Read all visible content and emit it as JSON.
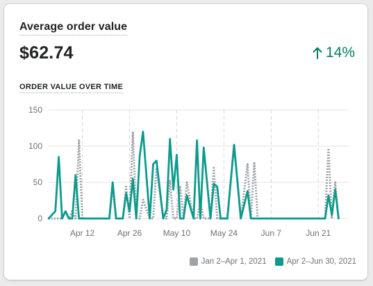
{
  "card": {
    "title": "Average order value",
    "value": "$62.74",
    "change": "14%",
    "change_direction": "up",
    "subtitle": "ORDER VALUE OVER TIME"
  },
  "colors": {
    "current": "#0c9a8d",
    "previous": "#9ea3a8",
    "positive": "#008060"
  },
  "chart_data": {
    "type": "line",
    "ylim": [
      0,
      150
    ],
    "yticks": [
      0,
      50,
      100,
      150
    ],
    "xlim": [
      "2021-04-02",
      "2021-06-30"
    ],
    "xticks": [
      {
        "label": "Apr 12",
        "date": "2021-04-12"
      },
      {
        "label": "Apr 26",
        "date": "2021-04-26"
      },
      {
        "label": "May 10",
        "date": "2021-05-10"
      },
      {
        "label": "May 24",
        "date": "2021-05-24"
      },
      {
        "label": "Jun 7",
        "date": "2021-06-07"
      },
      {
        "label": "Jun 21",
        "date": "2021-06-21"
      }
    ],
    "series": [
      {
        "name": "Jan 2–Apr 1, 2021",
        "style": "dotted",
        "color": "#9ea3a8",
        "x": [
          "2021-04-02",
          "2021-04-04",
          "2021-04-05",
          "2021-04-06",
          "2021-04-07",
          "2021-04-08",
          "2021-04-09",
          "2021-04-10",
          "2021-04-11",
          "2021-04-12",
          "2021-04-20",
          "2021-04-21",
          "2021-04-22",
          "2021-04-24",
          "2021-04-25",
          "2021-04-26",
          "2021-04-27",
          "2021-04-28",
          "2021-04-29",
          "2021-04-30",
          "2021-05-02",
          "2021-05-03",
          "2021-05-04",
          "2021-05-06",
          "2021-05-07",
          "2021-05-08",
          "2021-05-09",
          "2021-05-10",
          "2021-05-11",
          "2021-05-12",
          "2021-05-13",
          "2021-05-15",
          "2021-05-16",
          "2021-05-17",
          "2021-05-18",
          "2021-05-20",
          "2021-05-21",
          "2021-05-22",
          "2021-05-23",
          "2021-05-25",
          "2021-05-27",
          "2021-05-29",
          "2021-05-31",
          "2021-06-01",
          "2021-06-02",
          "2021-06-03",
          "2021-06-04",
          "2021-06-05",
          "2021-06-23",
          "2021-06-24",
          "2021-06-25",
          "2021-06-26",
          "2021-06-27"
        ],
        "y": [
          0,
          0,
          0,
          0,
          10,
          0,
          10,
          0,
          108,
          0,
          0,
          44,
          0,
          0,
          44,
          0,
          120,
          0,
          0,
          26,
          0,
          0,
          70,
          0,
          0,
          52,
          0,
          0,
          45,
          0,
          50,
          0,
          0,
          22,
          0,
          0,
          70,
          0,
          0,
          0,
          102,
          0,
          75,
          0,
          78,
          0,
          0,
          0,
          0,
          97,
          0,
          50,
          0
        ]
      },
      {
        "name": "Apr 2–Jun 30, 2021",
        "style": "solid",
        "color": "#0c9a8d",
        "x": [
          "2021-04-02",
          "2021-04-04",
          "2021-04-05",
          "2021-04-06",
          "2021-04-07",
          "2021-04-08",
          "2021-04-09",
          "2021-04-10",
          "2021-04-11",
          "2021-04-12",
          "2021-04-20",
          "2021-04-21",
          "2021-04-22",
          "2021-04-24",
          "2021-04-25",
          "2021-04-26",
          "2021-04-27",
          "2021-04-28",
          "2021-04-29",
          "2021-04-30",
          "2021-05-02",
          "2021-05-03",
          "2021-05-04",
          "2021-05-06",
          "2021-05-07",
          "2021-05-08",
          "2021-05-09",
          "2021-05-10",
          "2021-05-11",
          "2021-05-12",
          "2021-05-13",
          "2021-05-15",
          "2021-05-16",
          "2021-05-17",
          "2021-05-18",
          "2021-05-20",
          "2021-05-21",
          "2021-05-22",
          "2021-05-23",
          "2021-05-25",
          "2021-05-27",
          "2021-05-29",
          "2021-05-31",
          "2021-06-01",
          "2021-06-02",
          "2021-06-03",
          "2021-06-04",
          "2021-06-05",
          "2021-06-23",
          "2021-06-24",
          "2021-06-25",
          "2021-06-26",
          "2021-06-27"
        ],
        "y": [
          0,
          10,
          85,
          0,
          10,
          0,
          0,
          60,
          0,
          0,
          0,
          50,
          0,
          0,
          35,
          10,
          55,
          0,
          86,
          120,
          0,
          75,
          80,
          0,
          12,
          110,
          40,
          88,
          0,
          0,
          32,
          0,
          108,
          0,
          98,
          0,
          48,
          44,
          0,
          0,
          102,
          0,
          38,
          0,
          0,
          0,
          0,
          0,
          0,
          32,
          5,
          40,
          0
        ]
      }
    ]
  }
}
